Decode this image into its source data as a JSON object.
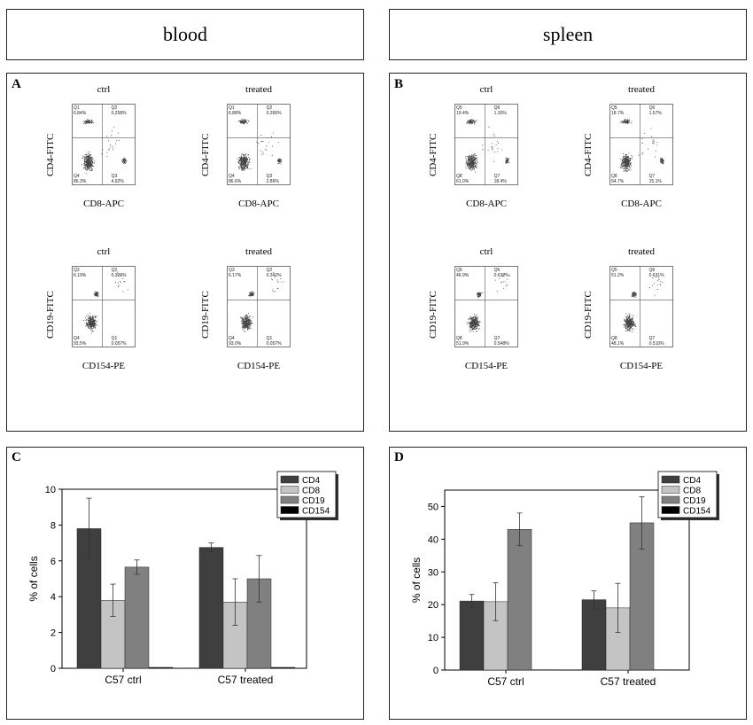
{
  "headers": {
    "blood": "blood",
    "spleen": "spleen"
  },
  "panels": {
    "A": "A",
    "B": "B",
    "C": "C",
    "D": "D"
  },
  "flow": {
    "A": [
      {
        "title": "ctrl",
        "ylabel": "CD4-FITC",
        "xlabel": "CD8-APC",
        "q": {
          "tl": [
            "Q1",
            "6.84%"
          ],
          "tr": [
            "Q2",
            "0.258%"
          ],
          "bl": [
            "Q4",
            "86.3%"
          ],
          "br": [
            "Q3",
            "4.92%"
          ]
        }
      },
      {
        "title": "treated",
        "ylabel": "CD4-FITC",
        "xlabel": "CD8-APC",
        "q": {
          "tl": [
            "Q1",
            "6.88%"
          ],
          "tr": [
            "Q2",
            "0.266%"
          ],
          "bl": [
            "Q4",
            "86.6%"
          ],
          "br": [
            "Q3",
            "2.86%"
          ]
        }
      },
      {
        "title": "ctrl",
        "ylabel": "CD19-FITC",
        "xlabel": "CD154-PE",
        "q": {
          "tl": [
            "Q3",
            "6.19%"
          ],
          "tr": [
            "Q2",
            "0.326%"
          ],
          "bl": [
            "Q4",
            "93.5%"
          ],
          "br": [
            "Q1",
            "0.057%"
          ]
        }
      },
      {
        "title": "treated",
        "ylabel": "CD19-FITC",
        "xlabel": "CD154-PE",
        "q": {
          "tl": [
            "Q3",
            "6.17%"
          ],
          "tr": [
            "Q2",
            "0.342%"
          ],
          "bl": [
            "Q4",
            "93.0%"
          ],
          "br": [
            "Q1",
            "0.057%"
          ]
        }
      }
    ],
    "B": [
      {
        "title": "ctrl",
        "ylabel": "CD4-FITC",
        "xlabel": "CD8-APC",
        "q": {
          "tl": [
            "Q5",
            "19.4%"
          ],
          "tr": [
            "Q6",
            "1.30%"
          ],
          "bl": [
            "Q8",
            "61.0%"
          ],
          "br": [
            "Q7",
            "18.4%"
          ]
        }
      },
      {
        "title": "treated",
        "ylabel": "CD4-FITC",
        "xlabel": "CD8-APC",
        "q": {
          "tl": [
            "Q5",
            "18.7%"
          ],
          "tr": [
            "Q6",
            "1.57%"
          ],
          "bl": [
            "Q8",
            "64.7%"
          ],
          "br": [
            "Q7",
            "15.1%"
          ]
        }
      },
      {
        "title": "ctrl",
        "ylabel": "CD19-FITC",
        "xlabel": "CD154-PE",
        "q": {
          "tl": [
            "Q5",
            "46.9%"
          ],
          "tr": [
            "Q6",
            "0.632%"
          ],
          "bl": [
            "Q8",
            "51.9%"
          ],
          "br": [
            "Q7",
            "0.548%"
          ]
        }
      },
      {
        "title": "treated",
        "ylabel": "CD19-FITC",
        "xlabel": "CD154-PE",
        "q": {
          "tl": [
            "Q5",
            "51.2%"
          ],
          "tr": [
            "Q6",
            "0.631%"
          ],
          "bl": [
            "Q8",
            "48.1%"
          ],
          "br": [
            "Q7",
            "0.510%"
          ]
        }
      }
    ]
  },
  "chart_data": [
    {
      "panel": "C",
      "type": "bar",
      "categories": [
        "C57 ctrl",
        "C57 treated"
      ],
      "ylabel": "% of cells",
      "ylim": [
        0,
        10
      ],
      "yticks": [
        0,
        2,
        4,
        6,
        8,
        10
      ],
      "legend_position": "top-right",
      "series": [
        {
          "name": "CD4",
          "color": "#3f3f3f",
          "values": [
            7.8,
            6.75
          ],
          "errors": [
            1.7,
            0.25
          ]
        },
        {
          "name": "CD8",
          "color": "#c4c4c4",
          "values": [
            3.8,
            3.7
          ],
          "errors": [
            0.9,
            1.3
          ]
        },
        {
          "name": "CD19",
          "color": "#808080",
          "values": [
            5.65,
            5.0
          ],
          "errors": [
            0.4,
            1.3
          ]
        },
        {
          "name": "CD154",
          "color": "#000000",
          "values": [
            0.05,
            0.05
          ],
          "errors": [
            0,
            0
          ]
        }
      ]
    },
    {
      "panel": "D",
      "type": "bar",
      "categories": [
        "C57 ctrl",
        "C57 treated"
      ],
      "ylabel": "% of cells",
      "ylim": [
        0,
        55
      ],
      "yticks": [
        0,
        10,
        20,
        30,
        40,
        50
      ],
      "legend_position": "top-right",
      "series": [
        {
          "name": "CD4",
          "color": "#3f3f3f",
          "values": [
            21.1,
            21.5
          ],
          "errors": [
            2.0,
            2.7
          ]
        },
        {
          "name": "CD8",
          "color": "#c4c4c4",
          "values": [
            20.9,
            19.0
          ],
          "errors": [
            5.8,
            7.5
          ]
        },
        {
          "name": "CD19",
          "color": "#808080",
          "values": [
            43.0,
            45.0
          ],
          "errors": [
            5.0,
            8.0
          ]
        },
        {
          "name": "CD154",
          "color": "#000000",
          "values": [
            0.1,
            0.1
          ],
          "errors": [
            0,
            0
          ]
        }
      ]
    }
  ]
}
